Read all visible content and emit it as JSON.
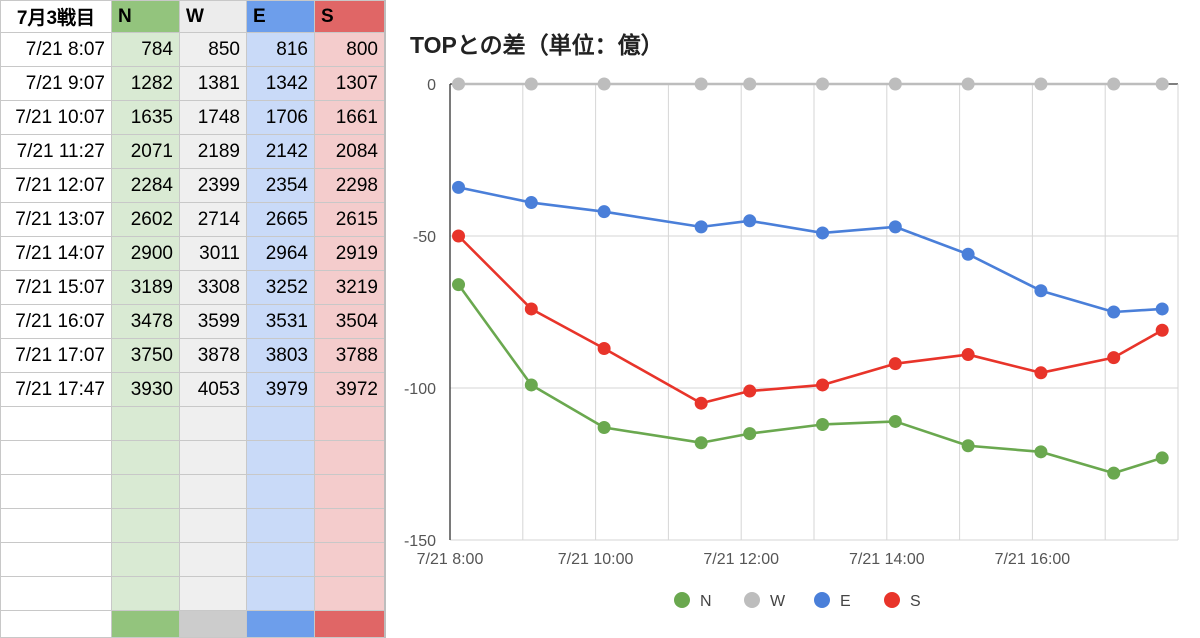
{
  "sheet": {
    "header": {
      "title": "7月3戦目",
      "n": "N",
      "w": "W",
      "e": "E",
      "s": "S"
    },
    "rows": [
      {
        "time": "7/21 8:07",
        "n": "784",
        "w": "850",
        "e": "816",
        "s": "800"
      },
      {
        "time": "7/21 9:07",
        "n": "1282",
        "w": "1381",
        "e": "1342",
        "s": "1307"
      },
      {
        "time": "7/21 10:07",
        "n": "1635",
        "w": "1748",
        "e": "1706",
        "s": "1661"
      },
      {
        "time": "7/21 11:27",
        "n": "2071",
        "w": "2189",
        "e": "2142",
        "s": "2084"
      },
      {
        "time": "7/21 12:07",
        "n": "2284",
        "w": "2399",
        "e": "2354",
        "s": "2298"
      },
      {
        "time": "7/21 13:07",
        "n": "2602",
        "w": "2714",
        "e": "2665",
        "s": "2615"
      },
      {
        "time": "7/21 14:07",
        "n": "2900",
        "w": "3011",
        "e": "2964",
        "s": "2919"
      },
      {
        "time": "7/21 15:07",
        "n": "3189",
        "w": "3308",
        "e": "3252",
        "s": "3219"
      },
      {
        "time": "7/21 16:07",
        "n": "3478",
        "w": "3599",
        "e": "3531",
        "s": "3504"
      },
      {
        "time": "7/21 17:07",
        "n": "3750",
        "w": "3878",
        "e": "3803",
        "s": "3788"
      },
      {
        "time": "7/21 17:47",
        "n": "3930",
        "w": "4053",
        "e": "3979",
        "s": "3972"
      }
    ]
  },
  "chart_data": {
    "type": "line",
    "title": "TOPとの差（単位：億）",
    "x": [
      "7/21 8:07",
      "7/21 9:07",
      "7/21 10:07",
      "7/21 11:27",
      "7/21 12:07",
      "7/21 13:07",
      "7/21 14:07",
      "7/21 15:07",
      "7/21 16:07",
      "7/21 17:07",
      "7/21 17:47"
    ],
    "x_hours": [
      8.117,
      9.117,
      10.117,
      11.45,
      12.117,
      13.117,
      14.117,
      15.117,
      16.117,
      17.117,
      17.783
    ],
    "x_range": [
      8.0,
      18.0
    ],
    "x_ticks": [
      {
        "value": 8,
        "label": "7/21 8:00"
      },
      {
        "value": 10,
        "label": "7/21 10:00"
      },
      {
        "value": 12,
        "label": "7/21 12:00"
      },
      {
        "value": 14,
        "label": "7/21 14:00"
      },
      {
        "value": 16,
        "label": "7/21 16:00"
      }
    ],
    "ylim": [
      -150,
      0
    ],
    "y_ticks": [
      0,
      -50,
      -100,
      -150
    ],
    "grid": true,
    "legend_position": "bottom",
    "series": [
      {
        "name": "N",
        "color": "#6aa84f",
        "values": [
          -66,
          -99,
          -113,
          -118,
          -115,
          -112,
          -111,
          -119,
          -121,
          -128,
          -123
        ]
      },
      {
        "name": "W",
        "color": "#bdbdbd",
        "values": [
          0,
          0,
          0,
          0,
          0,
          0,
          0,
          0,
          0,
          0,
          0
        ]
      },
      {
        "name": "E",
        "color": "#4a7fd9",
        "values": [
          -34,
          -39,
          -42,
          -47,
          -45,
          -49,
          -47,
          -56,
          -68,
          -75,
          -74
        ]
      },
      {
        "name": "S",
        "color": "#e8342a",
        "values": [
          -50,
          -74,
          -87,
          -105,
          -101,
          -99,
          -92,
          -89,
          -95,
          -90,
          -81
        ]
      }
    ]
  }
}
